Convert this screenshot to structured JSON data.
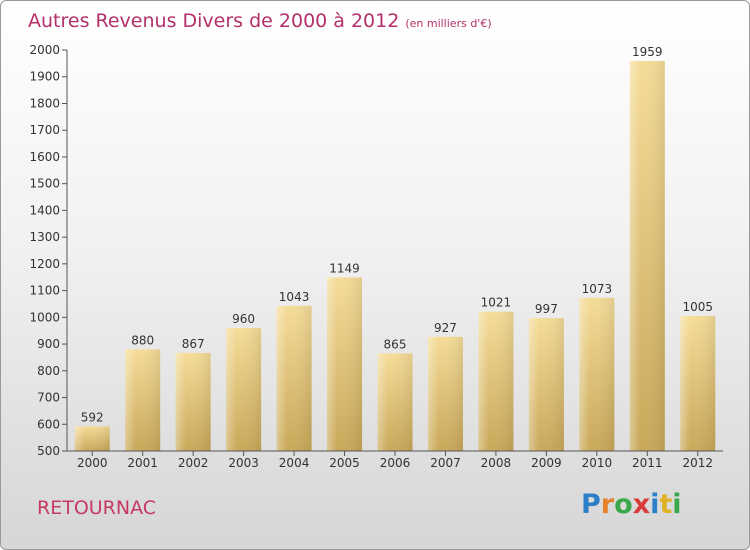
{
  "chart_data": {
    "type": "bar",
    "title": "Autres Revenus Divers de 2000 à 2012",
    "subtitle": "(en milliers d'€)",
    "categories": [
      "2000",
      "2001",
      "2002",
      "2003",
      "2004",
      "2005",
      "2006",
      "2007",
      "2008",
      "2009",
      "2010",
      "2011",
      "2012"
    ],
    "values": [
      592,
      880,
      867,
      960,
      1043,
      1149,
      865,
      927,
      1021,
      997,
      1073,
      1959,
      1005
    ],
    "ylim": [
      500,
      2000
    ],
    "yticks": [
      500,
      600,
      700,
      800,
      900,
      1000,
      1100,
      1200,
      1300,
      1400,
      1500,
      1600,
      1700,
      1800,
      1900,
      2000
    ],
    "xlabel": "",
    "ylabel": "",
    "grid": false,
    "bar_color_top": "#f5dc98",
    "bar_color_bottom": "#c9a859"
  },
  "place": "RETOURNAC",
  "logo": {
    "letters": [
      "P",
      "r",
      "o",
      "x",
      "i",
      "t",
      "i"
    ],
    "colors": [
      "#2a7fc8",
      "#e8822a",
      "#3aa84a",
      "#d93a3a",
      "#2a7fc8",
      "#e0b22a",
      "#3aa84a"
    ]
  }
}
